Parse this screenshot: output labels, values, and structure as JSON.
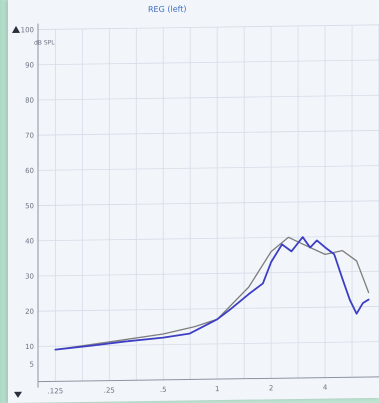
{
  "window": {
    "title": "REG (left)"
  },
  "chart_data": {
    "type": "line",
    "title": "REG (left)",
    "ylabel": "dB SPL",
    "ylim": [
      0,
      100
    ],
    "y_ticks": [
      100,
      90,
      80,
      70,
      60,
      50,
      40,
      30,
      20,
      10,
      5
    ],
    "y_tick_labels": [
      "100",
      "90",
      "80",
      "70",
      "60",
      "50",
      "40",
      "30",
      "20",
      "10",
      "5"
    ],
    "x_tick_labels": [
      ".125",
      ".25",
      ".5",
      "1",
      "2",
      "4"
    ],
    "grid": true,
    "colors": {
      "measured": "#3d3ec4",
      "target": "#7d7d7d",
      "grid": "#d6dbe6",
      "title": "#3a6cc7"
    },
    "series": [
      {
        "name": "",
        "color": "#7d7d7d",
        "x": [
          0.125,
          0.25,
          0.5,
          0.75,
          1,
          1.5,
          2,
          2.5,
          3,
          4,
          5,
          6,
          7
        ],
        "y": [
          9,
          11,
          13,
          15,
          17,
          26,
          36,
          40,
          38,
          35,
          36,
          33,
          24
        ]
      },
      {
        "name": "",
        "color": "#3d3ec4",
        "x": [
          0.125,
          0.2,
          0.3,
          0.5,
          0.7,
          1,
          1.2,
          1.5,
          1.8,
          2,
          2.3,
          2.6,
          3,
          3.3,
          3.6,
          4,
          4.5,
          5,
          5.5,
          6,
          6.5,
          7
        ],
        "y": [
          9,
          10,
          11,
          12,
          13,
          17,
          20,
          24,
          27,
          33,
          38,
          36,
          40,
          37,
          39,
          37,
          35,
          28,
          22,
          18,
          21,
          22
        ]
      }
    ]
  }
}
